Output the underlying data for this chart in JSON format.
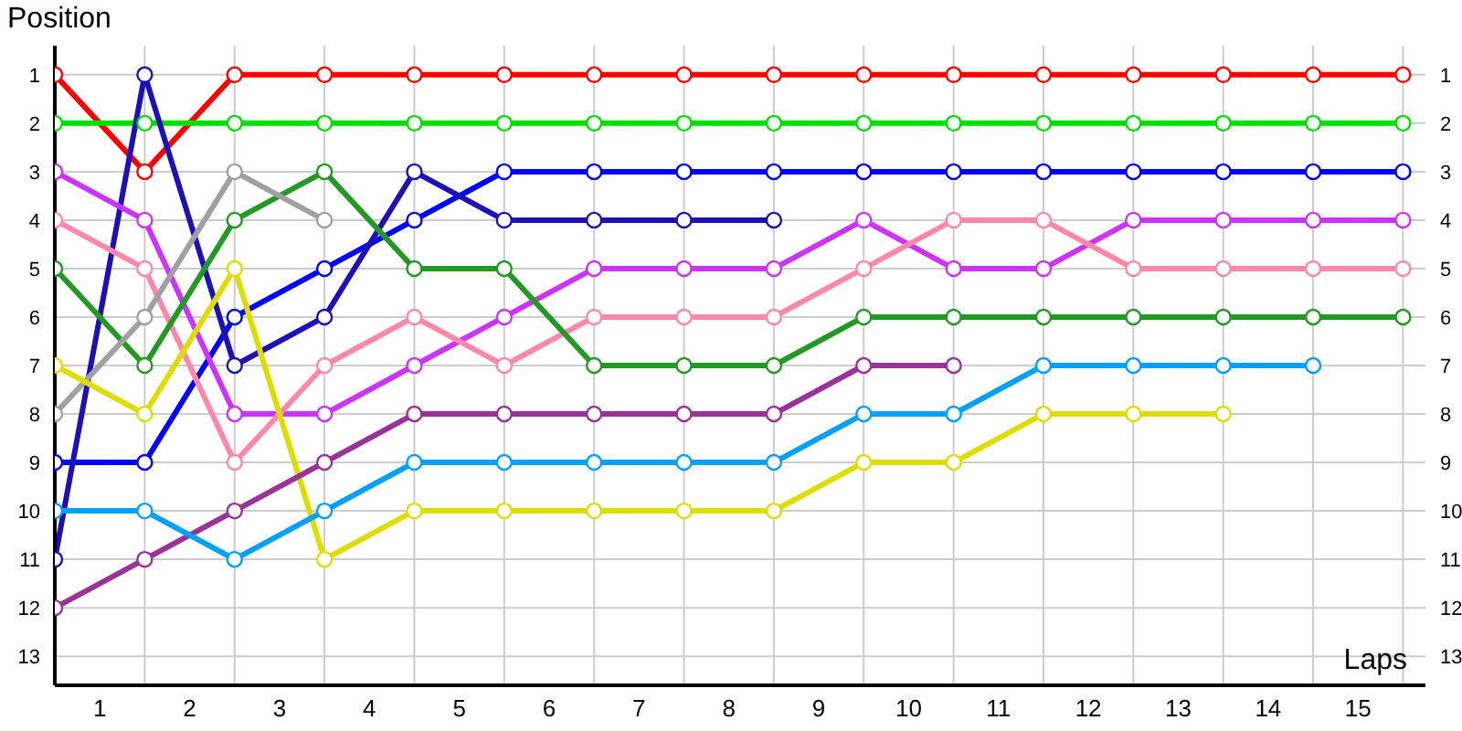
{
  "chart_data": {
    "type": "line",
    "xlabel": "Laps",
    "ylabel": "Position",
    "x": [
      0,
      1,
      2,
      3,
      4,
      5,
      6,
      7,
      8,
      9,
      10,
      11,
      12,
      13,
      14,
      15
    ],
    "series": [
      {
        "color": "#ff0000",
        "values": [
          1,
          3,
          1,
          1,
          1,
          1,
          1,
          1,
          1,
          1,
          1,
          1,
          1,
          1,
          1,
          1
        ]
      },
      {
        "color": "#00dd00",
        "values": [
          2,
          2,
          2,
          2,
          2,
          2,
          2,
          2,
          2,
          2,
          2,
          2,
          2,
          2,
          2,
          2
        ]
      },
      {
        "color": "#0000ff",
        "values": [
          9,
          9,
          6,
          5,
          4,
          3,
          3,
          3,
          3,
          3,
          3,
          3,
          3,
          3,
          3,
          3
        ]
      },
      {
        "color": "#1d10b8",
        "values": [
          11,
          1,
          7,
          6,
          3,
          4,
          4,
          4,
          4,
          null,
          null,
          null,
          null,
          null,
          null,
          null
        ]
      },
      {
        "color": "#cc33ff",
        "values": [
          3,
          4,
          8,
          8,
          7,
          6,
          5,
          5,
          5,
          4,
          5,
          5,
          4,
          4,
          4,
          4
        ]
      },
      {
        "color": "#ff88aa",
        "values": [
          4,
          5,
          9,
          7,
          6,
          7,
          6,
          6,
          6,
          5,
          4,
          4,
          5,
          5,
          5,
          5
        ]
      },
      {
        "color": "#229922",
        "values": [
          5,
          7,
          4,
          3,
          5,
          5,
          7,
          7,
          7,
          6,
          6,
          6,
          6,
          6,
          6,
          6
        ]
      },
      {
        "color": "#a0a0a0",
        "values": [
          8,
          6,
          3,
          4,
          null,
          null,
          null,
          null,
          null,
          null,
          null,
          null,
          null,
          null,
          null,
          null
        ]
      },
      {
        "color": "#dddd00",
        "values": [
          7,
          8,
          5,
          11,
          10,
          10,
          10,
          10,
          10,
          9,
          9,
          8,
          8,
          8,
          null,
          null
        ]
      },
      {
        "color": "#993399",
        "values": [
          12,
          11,
          10,
          9,
          8,
          8,
          8,
          8,
          8,
          7,
          7,
          null,
          null,
          null,
          null,
          null
        ]
      },
      {
        "color": "#00a0ff",
        "values": [
          10,
          10,
          11,
          10,
          9,
          9,
          9,
          9,
          9,
          8,
          8,
          7,
          7,
          7,
          7,
          null
        ]
      }
    ],
    "xlim": [
      0,
      15.25
    ],
    "xticks": [
      {
        "value": 0.5,
        "label": "1"
      },
      {
        "value": 1,
        "label": null
      },
      {
        "value": 1.5,
        "label": "2"
      },
      {
        "value": 2,
        "label": null
      },
      {
        "value": 2.5,
        "label": "3"
      },
      {
        "value": 3,
        "label": null
      },
      {
        "value": 3.5,
        "label": "4"
      },
      {
        "value": 4,
        "label": null
      },
      {
        "value": 4.5,
        "label": "5"
      },
      {
        "value": 5,
        "label": null
      },
      {
        "value": 5.5,
        "label": "6"
      },
      {
        "value": 6,
        "label": null
      },
      {
        "value": 6.5,
        "label": "7"
      },
      {
        "value": 7,
        "label": null
      },
      {
        "value": 7.5,
        "label": "8"
      },
      {
        "value": 8,
        "label": null
      },
      {
        "value": 8.5,
        "label": "9"
      },
      {
        "value": 9,
        "label": null
      },
      {
        "value": 9.5,
        "label": "10"
      },
      {
        "value": 10,
        "label": null
      },
      {
        "value": 10.5,
        "label": "11"
      },
      {
        "value": 11,
        "label": null
      },
      {
        "value": 11.5,
        "label": "12"
      },
      {
        "value": 12,
        "label": null
      },
      {
        "value": 12.5,
        "label": "13"
      },
      {
        "value": 13,
        "label": null
      },
      {
        "value": 13.5,
        "label": "14"
      },
      {
        "value": 14,
        "label": null
      },
      {
        "value": 14.5,
        "label": "15"
      },
      {
        "value": 15,
        "label": null
      }
    ],
    "ylim": [
      13.6,
      0.4
    ],
    "yticks": [
      1,
      2,
      3,
      4,
      5,
      6,
      7,
      8,
      9,
      10,
      11,
      12,
      13
    ],
    "y2lim": [
      13.6,
      0.4
    ],
    "y2ticks": [
      1,
      2,
      3,
      4,
      5,
      6,
      7,
      8,
      9,
      10,
      11,
      12,
      13
    ],
    "grid": true,
    "marker": "circle",
    "line_style": "solid"
  }
}
